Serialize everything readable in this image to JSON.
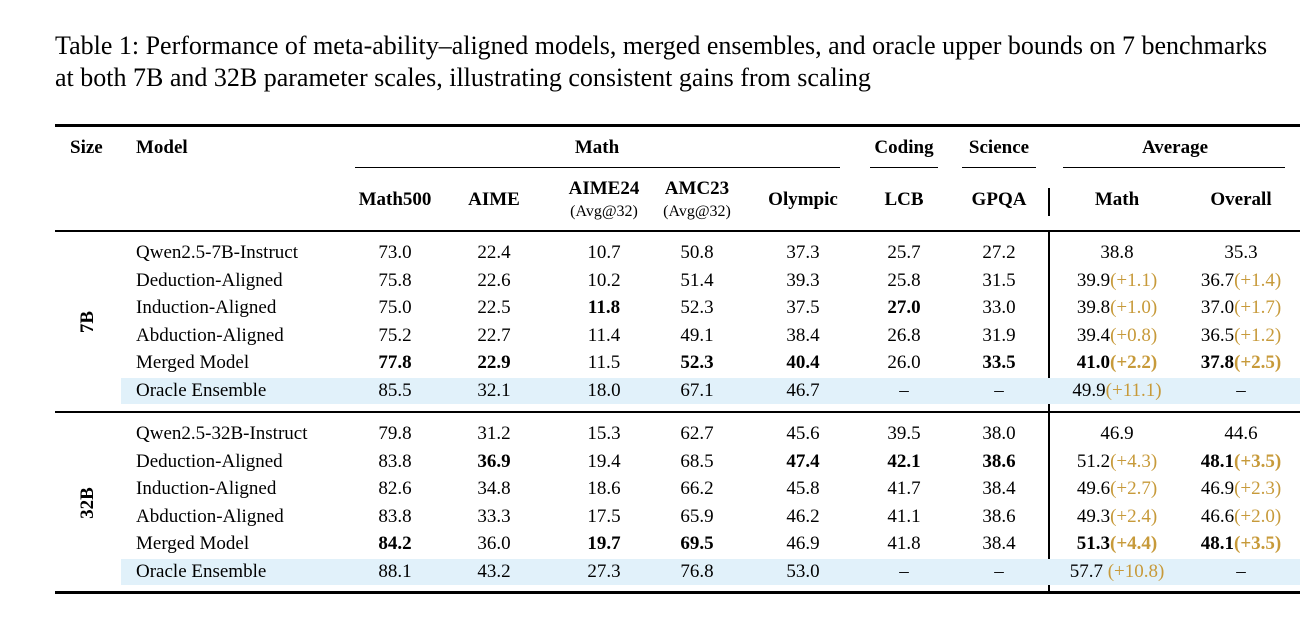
{
  "caption": "Table 1: Performance of meta-ability–aligned models, merged ensembles, and oracle upper bounds on 7 benchmarks at both 7B and 32B parameter scales, illustrating consistent gains from scaling",
  "headers": {
    "size": "Size",
    "model": "Model",
    "groups": {
      "math": "Math",
      "coding": "Coding",
      "science": "Science",
      "average": "Average"
    },
    "columns": [
      {
        "label": "Math500",
        "sub": ""
      },
      {
        "label": "AIME",
        "sub": ""
      },
      {
        "label": "AIME24",
        "sub": "(Avg@32)"
      },
      {
        "label": "AMC23",
        "sub": "(Avg@32)"
      },
      {
        "label": "Olympic",
        "sub": ""
      },
      {
        "label": "LCB",
        "sub": ""
      },
      {
        "label": "GPQA",
        "sub": ""
      },
      {
        "label": "Math",
        "sub": ""
      },
      {
        "label": "Overall",
        "sub": ""
      }
    ]
  },
  "sections": [
    {
      "size": "7B",
      "rows": [
        {
          "model": "Qwen2.5-7B-Instruct",
          "highlight": false,
          "cells": [
            {
              "v": "73.0"
            },
            {
              "v": "22.4"
            },
            {
              "v": "10.7"
            },
            {
              "v": "50.8"
            },
            {
              "v": "37.3"
            },
            {
              "v": "25.7"
            },
            {
              "v": "27.2"
            },
            {
              "v": "38.8"
            },
            {
              "v": "35.3"
            }
          ]
        },
        {
          "model": "Deduction-Aligned",
          "highlight": false,
          "cells": [
            {
              "v": "75.8"
            },
            {
              "v": "22.6"
            },
            {
              "v": "10.2"
            },
            {
              "v": "51.4"
            },
            {
              "v": "39.3"
            },
            {
              "v": "25.8"
            },
            {
              "v": "31.5"
            },
            {
              "v": "39.9",
              "g": "(+1.1)"
            },
            {
              "v": "36.7",
              "g": "(+1.4)"
            }
          ]
        },
        {
          "model": "Induction-Aligned",
          "highlight": false,
          "cells": [
            {
              "v": "75.0"
            },
            {
              "v": "22.5"
            },
            {
              "v": "11.8",
              "b": true
            },
            {
              "v": "52.3"
            },
            {
              "v": "37.5"
            },
            {
              "v": "27.0",
              "b": true
            },
            {
              "v": "33.0"
            },
            {
              "v": "39.8",
              "g": "(+1.0)"
            },
            {
              "v": "37.0",
              "g": "(+1.7)"
            }
          ]
        },
        {
          "model": "Abduction-Aligned",
          "highlight": false,
          "cells": [
            {
              "v": "75.2"
            },
            {
              "v": "22.7"
            },
            {
              "v": "11.4"
            },
            {
              "v": "49.1"
            },
            {
              "v": "38.4"
            },
            {
              "v": "26.8"
            },
            {
              "v": "31.9"
            },
            {
              "v": "39.4",
              "g": "(+0.8)"
            },
            {
              "v": "36.5",
              "g": "(+1.2)"
            }
          ]
        },
        {
          "model": "Merged Model",
          "highlight": false,
          "cells": [
            {
              "v": "77.8",
              "b": true
            },
            {
              "v": "22.9",
              "b": true
            },
            {
              "v": "11.5"
            },
            {
              "v": "52.3",
              "b": true
            },
            {
              "v": "40.4",
              "b": true
            },
            {
              "v": "26.0"
            },
            {
              "v": "33.5",
              "b": true
            },
            {
              "v": "41.0",
              "g": "(+2.2)",
              "b": true
            },
            {
              "v": "37.8",
              "g": "(+2.5)",
              "b": true
            }
          ]
        },
        {
          "model": "Oracle Ensemble",
          "highlight": true,
          "cells": [
            {
              "v": "85.5"
            },
            {
              "v": "32.1"
            },
            {
              "v": "18.0"
            },
            {
              "v": "67.1"
            },
            {
              "v": "46.7"
            },
            {
              "v": "–"
            },
            {
              "v": "–"
            },
            {
              "v": "49.9",
              "g": "(+11.1)"
            },
            {
              "v": "–"
            }
          ]
        }
      ]
    },
    {
      "size": "32B",
      "rows": [
        {
          "model": "Qwen2.5-32B-Instruct",
          "highlight": false,
          "cells": [
            {
              "v": "79.8"
            },
            {
              "v": "31.2"
            },
            {
              "v": "15.3"
            },
            {
              "v": "62.7"
            },
            {
              "v": "45.6"
            },
            {
              "v": "39.5"
            },
            {
              "v": "38.0"
            },
            {
              "v": "46.9"
            },
            {
              "v": "44.6"
            }
          ]
        },
        {
          "model": "Deduction-Aligned",
          "highlight": false,
          "cells": [
            {
              "v": "83.8"
            },
            {
              "v": "36.9",
              "b": true
            },
            {
              "v": "19.4"
            },
            {
              "v": "68.5"
            },
            {
              "v": "47.4",
              "b": true
            },
            {
              "v": "42.1",
              "b": true
            },
            {
              "v": "38.6",
              "b": true
            },
            {
              "v": "51.2",
              "g": "(+4.3)"
            },
            {
              "v": "48.1",
              "g": "(+3.5)",
              "b": true
            }
          ]
        },
        {
          "model": "Induction-Aligned",
          "highlight": false,
          "cells": [
            {
              "v": "82.6"
            },
            {
              "v": "34.8"
            },
            {
              "v": "18.6"
            },
            {
              "v": "66.2"
            },
            {
              "v": "45.8"
            },
            {
              "v": "41.7"
            },
            {
              "v": "38.4"
            },
            {
              "v": "49.6",
              "g": "(+2.7)"
            },
            {
              "v": "46.9",
              "g": "(+2.3)"
            }
          ]
        },
        {
          "model": "Abduction-Aligned",
          "highlight": false,
          "cells": [
            {
              "v": "83.8"
            },
            {
              "v": "33.3"
            },
            {
              "v": "17.5"
            },
            {
              "v": "65.9"
            },
            {
              "v": "46.2"
            },
            {
              "v": "41.1"
            },
            {
              "v": "38.6"
            },
            {
              "v": "49.3",
              "g": "(+2.4)"
            },
            {
              "v": "46.6",
              "g": "(+2.0)"
            }
          ]
        },
        {
          "model": "Merged Model",
          "highlight": false,
          "cells": [
            {
              "v": "84.2",
              "b": true
            },
            {
              "v": "36.0"
            },
            {
              "v": "19.7",
              "b": true
            },
            {
              "v": "69.5",
              "b": true
            },
            {
              "v": "46.9"
            },
            {
              "v": "41.8"
            },
            {
              "v": "38.4"
            },
            {
              "v": "51.3",
              "g": "(+4.4)",
              "b": true
            },
            {
              "v": "48.1",
              "g": "(+3.5)",
              "b": true
            }
          ]
        },
        {
          "model": "Oracle Ensemble",
          "highlight": true,
          "cells": [
            {
              "v": "88.1"
            },
            {
              "v": "43.2"
            },
            {
              "v": "27.3"
            },
            {
              "v": "76.8"
            },
            {
              "v": "53.0"
            },
            {
              "v": "–"
            },
            {
              "v": "–"
            },
            {
              "v": "57.7",
              "g": " (+10.8)"
            },
            {
              "v": "–"
            }
          ]
        }
      ]
    }
  ]
}
